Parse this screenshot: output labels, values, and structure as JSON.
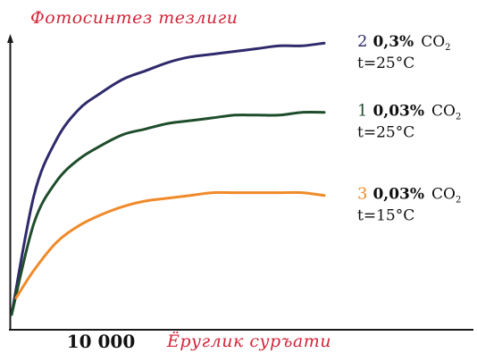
{
  "chart_data": {
    "type": "line",
    "ylabel": "Фотосинтез тезлиги",
    "xlabel": "Ёруглик суръати",
    "x_ticks": [
      {
        "x": 10000,
        "label": "10 000"
      }
    ],
    "xlim": [
      0,
      37500
    ],
    "ylim": [
      0,
      100
    ],
    "grid": false,
    "legend_position": "right",
    "series": [
      {
        "id": "2",
        "legend": {
          "number": "2",
          "concentration": "0,3%",
          "gas": "CO",
          "gas_sub": "2",
          "temperature": "t=25°C"
        },
        "color": "#2e2a6b",
        "points": [
          [
            0,
            0
          ],
          [
            2500,
            43
          ],
          [
            5000,
            63
          ],
          [
            7500,
            74
          ],
          [
            10000,
            80
          ],
          [
            12500,
            85
          ],
          [
            15000,
            88
          ],
          [
            17500,
            91
          ],
          [
            20000,
            93
          ],
          [
            22500,
            94
          ],
          [
            25000,
            95
          ],
          [
            27500,
            96
          ],
          [
            30000,
            97
          ],
          [
            32500,
            97
          ],
          [
            35000,
            98
          ]
        ]
      },
      {
        "id": "1",
        "legend": {
          "number": "1",
          "concentration": "0,03%",
          "gas": "CO",
          "gas_sub": "2",
          "temperature": "t=25°C"
        },
        "color": "#1e4d2b",
        "points": [
          [
            0,
            0
          ],
          [
            2500,
            33
          ],
          [
            5000,
            48
          ],
          [
            7500,
            56
          ],
          [
            10000,
            61
          ],
          [
            12500,
            65
          ],
          [
            15000,
            67
          ],
          [
            17500,
            69
          ],
          [
            20000,
            70
          ],
          [
            22500,
            71
          ],
          [
            25000,
            72
          ],
          [
            27500,
            72
          ],
          [
            30000,
            72
          ],
          [
            32500,
            73
          ],
          [
            35000,
            73
          ]
        ]
      },
      {
        "id": "3",
        "legend": {
          "number": "3",
          "concentration": "0,03%",
          "gas": "CO",
          "gas_sub": "2",
          "temperature": "t=15°C"
        },
        "color": "#f08a2a",
        "points": [
          [
            500,
            6
          ],
          [
            2500,
            16
          ],
          [
            5000,
            26
          ],
          [
            7500,
            32
          ],
          [
            10000,
            36
          ],
          [
            12500,
            39
          ],
          [
            15000,
            41
          ],
          [
            17500,
            42
          ],
          [
            20000,
            43
          ],
          [
            22500,
            44
          ],
          [
            25000,
            44
          ],
          [
            27500,
            44
          ],
          [
            30000,
            44
          ],
          [
            32500,
            44
          ],
          [
            35000,
            43
          ]
        ]
      }
    ]
  },
  "colors": {
    "axis": "#1a1a1a",
    "axis_title": "#d1263a",
    "tick_label": "#111111",
    "legend_text": "#111111"
  }
}
